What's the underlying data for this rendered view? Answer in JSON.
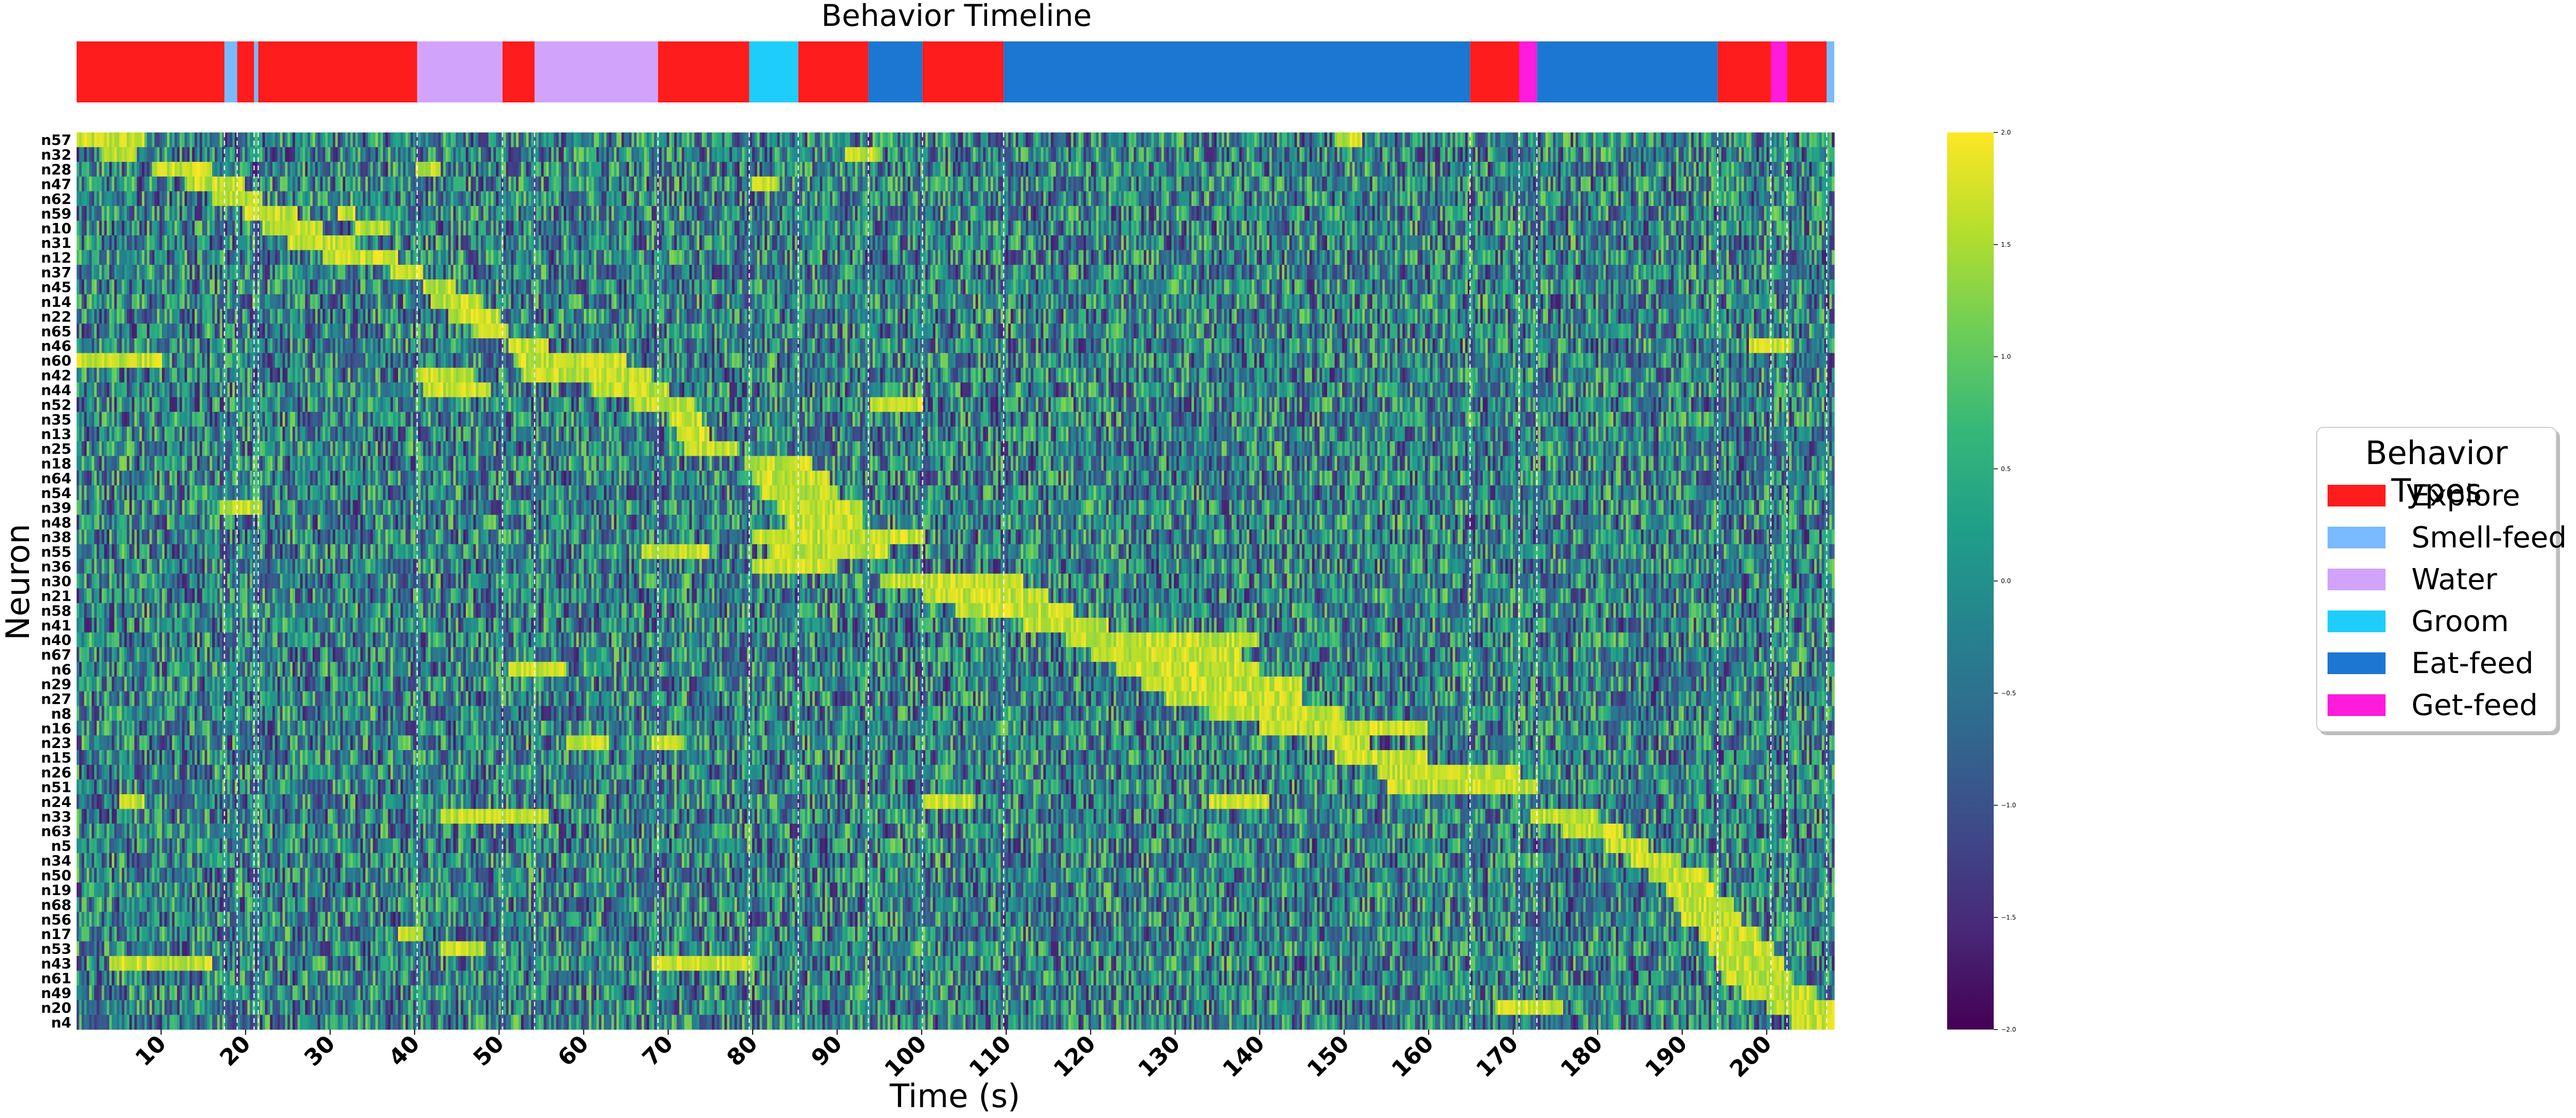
{
  "chart_data": [
    {
      "type": "timeline",
      "title": "Behavior Timeline",
      "x_range": [
        0,
        208
      ],
      "segments": [
        {
          "start": 0,
          "end": 17.5,
          "behavior": "Explore"
        },
        {
          "start": 17.5,
          "end": 19,
          "behavior": "Smell-feed"
        },
        {
          "start": 19,
          "end": 21,
          "behavior": "Explore"
        },
        {
          "start": 21,
          "end": 21.5,
          "behavior": "Smell-feed"
        },
        {
          "start": 21.5,
          "end": 40.3,
          "behavior": "Explore"
        },
        {
          "start": 40.3,
          "end": 50.4,
          "behavior": "Water"
        },
        {
          "start": 50.4,
          "end": 54.2,
          "behavior": "Explore"
        },
        {
          "start": 54.2,
          "end": 68.8,
          "behavior": "Water"
        },
        {
          "start": 68.8,
          "end": 79.6,
          "behavior": "Explore"
        },
        {
          "start": 79.6,
          "end": 85.4,
          "behavior": "Groom"
        },
        {
          "start": 85.4,
          "end": 93.7,
          "behavior": "Explore"
        },
        {
          "start": 93.7,
          "end": 100.1,
          "behavior": "Eat-feed"
        },
        {
          "start": 100.1,
          "end": 109.7,
          "behavior": "Explore"
        },
        {
          "start": 109.7,
          "end": 164.9,
          "behavior": "Eat-feed"
        },
        {
          "start": 164.9,
          "end": 170.7,
          "behavior": "Explore"
        },
        {
          "start": 170.7,
          "end": 172.8,
          "behavior": "Get-feed"
        },
        {
          "start": 172.8,
          "end": 194.2,
          "behavior": "Eat-feed"
        },
        {
          "start": 194.2,
          "end": 200.5,
          "behavior": "Explore"
        },
        {
          "start": 200.5,
          "end": 202.4,
          "behavior": "Get-feed"
        },
        {
          "start": 202.4,
          "end": 207.1,
          "behavior": "Explore"
        },
        {
          "start": 207.1,
          "end": 208,
          "behavior": "Smell-feed"
        }
      ],
      "behavior_colors": {
        "Explore": "#fe1c1c",
        "Smell-feed": "#7abaff",
        "Water": "#d1a3fb",
        "Groom": "#1fcdfb",
        "Eat-feed": "#1b77d1",
        "Get-feed": "#fe1bdb"
      }
    },
    {
      "type": "heatmap",
      "colormap": "viridis",
      "xlabel": "Time (s)",
      "ylabel": "Neuron",
      "x_range": [
        0,
        208
      ],
      "x_ticks": [
        10,
        20,
        30,
        40,
        50,
        60,
        70,
        80,
        90,
        100,
        110,
        120,
        130,
        140,
        150,
        160,
        170,
        180,
        190,
        200
      ],
      "neurons": [
        "n57",
        "n32",
        "n28",
        "n47",
        "n62",
        "n59",
        "n10",
        "n31",
        "n12",
        "n37",
        "n45",
        "n14",
        "n22",
        "n65",
        "n46",
        "n60",
        "n42",
        "n44",
        "n52",
        "n35",
        "n13",
        "n25",
        "n18",
        "n64",
        "n54",
        "n39",
        "n48",
        "n38",
        "n55",
        "n36",
        "n30",
        "n21",
        "n58",
        "n41",
        "n40",
        "n67",
        "n6",
        "n29",
        "n27",
        "n8",
        "n16",
        "n23",
        "n15",
        "n26",
        "n51",
        "n24",
        "n33",
        "n63",
        "n5",
        "n34",
        "n50",
        "n19",
        "n68",
        "n56",
        "n17",
        "n53",
        "n43",
        "n61",
        "n49",
        "n20",
        "n4"
      ],
      "behavior_boundaries": [
        17.5,
        19,
        21,
        21.5,
        40.3,
        50.4,
        54.2,
        68.8,
        79.6,
        85.4,
        93.7,
        100.1,
        109.7,
        164.9,
        170.7,
        172.8,
        194.2,
        200.5,
        202.4,
        207.1
      ],
      "high_activity": [
        {
          "neuron": "n57",
          "periods": [
            [
              0,
              8
            ],
            [
              149,
              152
            ]
          ]
        },
        {
          "neuron": "n32",
          "periods": [
            [
              3,
              7
            ],
            [
              91,
              95
            ]
          ]
        },
        {
          "neuron": "n28",
          "periods": [
            [
              9,
              16
            ],
            [
              40,
              43
            ]
          ]
        },
        {
          "neuron": "n47",
          "periods": [
            [
              13,
              20
            ],
            [
              80,
              83
            ]
          ]
        },
        {
          "neuron": "n62",
          "periods": [
            [
              16,
              22
            ]
          ]
        },
        {
          "neuron": "n59",
          "periods": [
            [
              20,
              26
            ],
            [
              31,
              33
            ]
          ]
        },
        {
          "neuron": "n10",
          "periods": [
            [
              22,
              29
            ],
            [
              33,
              37
            ]
          ]
        },
        {
          "neuron": "n31",
          "periods": [
            [
              25,
              33
            ]
          ]
        },
        {
          "neuron": "n12",
          "periods": [
            [
              29,
              38
            ]
          ]
        },
        {
          "neuron": "n37",
          "periods": [
            [
              37,
              41
            ]
          ]
        },
        {
          "neuron": "n45",
          "periods": [
            [
              41,
              45
            ]
          ]
        },
        {
          "neuron": "n14",
          "periods": [
            [
              42,
              48
            ]
          ]
        },
        {
          "neuron": "n22",
          "periods": [
            [
              44,
              50
            ]
          ]
        },
        {
          "neuron": "n65",
          "periods": [
            [
              47,
              51
            ]
          ]
        },
        {
          "neuron": "n46",
          "periods": [
            [
              51,
              56
            ],
            [
              198,
              203
            ]
          ]
        },
        {
          "neuron": "n60",
          "periods": [
            [
              0,
              10
            ],
            [
              52,
              58
            ],
            [
              58,
              65
            ]
          ]
        },
        {
          "neuron": "n42",
          "periods": [
            [
              40,
              47
            ],
            [
              53,
              68
            ]
          ]
        },
        {
          "neuron": "n44",
          "periods": [
            [
              41,
              49
            ],
            [
              61,
              70
            ]
          ]
        },
        {
          "neuron": "n52",
          "periods": [
            [
              66,
              73
            ],
            [
              94,
              100
            ]
          ]
        },
        {
          "neuron": "n35",
          "periods": [
            [
              70,
              74
            ]
          ]
        },
        {
          "neuron": "n13",
          "periods": [
            [
              71,
              75
            ]
          ]
        },
        {
          "neuron": "n25",
          "periods": [
            [
              72,
              78
            ]
          ]
        },
        {
          "neuron": "n18",
          "periods": [
            [
              79,
              87
            ]
          ]
        },
        {
          "neuron": "n64",
          "periods": [
            [
              80,
              89
            ]
          ]
        },
        {
          "neuron": "n54",
          "periods": [
            [
              81,
              90
            ]
          ]
        },
        {
          "neuron": "n39",
          "periods": [
            [
              17,
              22
            ],
            [
              83,
              93
            ]
          ]
        },
        {
          "neuron": "n48",
          "periods": [
            [
              84,
              93
            ]
          ]
        },
        {
          "neuron": "n38",
          "periods": [
            [
              80,
              100
            ]
          ]
        },
        {
          "neuron": "n55",
          "periods": [
            [
              67,
              75
            ],
            [
              82,
              96
            ]
          ]
        },
        {
          "neuron": "n36",
          "periods": [
            [
              80,
              90
            ]
          ]
        },
        {
          "neuron": "n30",
          "periods": [
            [
              95,
              112
            ]
          ]
        },
        {
          "neuron": "n21",
          "periods": [
            [
              100,
              115
            ]
          ]
        },
        {
          "neuron": "n58",
          "periods": [
            [
              104,
              118
            ]
          ]
        },
        {
          "neuron": "n41",
          "periods": [
            [
              112,
              122
            ]
          ]
        },
        {
          "neuron": "n40",
          "periods": [
            [
              117,
              140
            ]
          ]
        },
        {
          "neuron": "n67",
          "periods": [
            [
              120,
              138
            ]
          ]
        },
        {
          "neuron": "n6",
          "periods": [
            [
              51,
              58
            ],
            [
              123,
              140
            ]
          ]
        },
        {
          "neuron": "n29",
          "periods": [
            [
              126,
              145
            ]
          ]
        },
        {
          "neuron": "n27",
          "periods": [
            [
              129,
              145
            ]
          ]
        },
        {
          "neuron": "n8",
          "periods": [
            [
              134,
              150
            ]
          ]
        },
        {
          "neuron": "n16",
          "periods": [
            [
              140,
              160
            ]
          ]
        },
        {
          "neuron": "n23",
          "periods": [
            [
              58,
              63
            ],
            [
              68,
              72
            ],
            [
              148,
              153
            ]
          ]
        },
        {
          "neuron": "n15",
          "periods": [
            [
              149,
              160
            ]
          ]
        },
        {
          "neuron": "n26",
          "periods": [
            [
              154,
              171
            ]
          ]
        },
        {
          "neuron": "n51",
          "periods": [
            [
              155,
              173
            ]
          ]
        },
        {
          "neuron": "n24",
          "periods": [
            [
              5,
              8
            ],
            [
              100,
              106
            ],
            [
              134,
              141
            ]
          ]
        },
        {
          "neuron": "n33",
          "periods": [
            [
              43,
              56
            ],
            [
              172,
              180
            ]
          ]
        },
        {
          "neuron": "n63",
          "periods": [
            [
              176,
              183
            ]
          ]
        },
        {
          "neuron": "n5",
          "periods": [
            [
              181,
              186
            ]
          ]
        },
        {
          "neuron": "n34",
          "periods": [
            [
              184,
              190
            ]
          ]
        },
        {
          "neuron": "n50",
          "periods": [
            [
              186,
              193
            ]
          ]
        },
        {
          "neuron": "n19",
          "periods": [
            [
              188,
              194
            ]
          ]
        },
        {
          "neuron": "n68",
          "periods": [
            [
              189,
              196
            ]
          ]
        },
        {
          "neuron": "n56",
          "periods": [
            [
              190,
              197
            ]
          ]
        },
        {
          "neuron": "n17",
          "periods": [
            [
              38,
              41
            ],
            [
              192,
              199
            ]
          ]
        },
        {
          "neuron": "n53",
          "periods": [
            [
              43,
              48
            ],
            [
              193,
              201
            ]
          ]
        },
        {
          "neuron": "n43",
          "periods": [
            [
              4,
              16
            ],
            [
              68,
              80
            ],
            [
              194,
              202
            ]
          ]
        },
        {
          "neuron": "n61",
          "periods": [
            [
              195,
              203
            ]
          ]
        },
        {
          "neuron": "n49",
          "periods": [
            [
              197,
              206
            ]
          ]
        },
        {
          "neuron": "n20",
          "periods": [
            [
              168,
              176
            ],
            [
              200,
              208
            ]
          ]
        },
        {
          "neuron": "n4",
          "periods": [
            [
              203,
              208
            ]
          ]
        }
      ],
      "colorbar": {
        "min": -2.0,
        "max": 2.0,
        "ticks": [
          2.0,
          1.5,
          1.0,
          0.5,
          0.0,
          -0.5,
          -1.0,
          -1.5,
          -2.0
        ],
        "tick_labels": [
          "2.0",
          "1.5",
          "1.0",
          "0.5",
          "0.0",
          "−0.5",
          "−1.0",
          "−1.5",
          "−2.0"
        ]
      }
    }
  ],
  "legend": {
    "title": "Behavior Types",
    "items": [
      {
        "label": "Explore",
        "color": "#fe1c1c"
      },
      {
        "label": "Smell-feed",
        "color": "#7abaff"
      },
      {
        "label": "Water",
        "color": "#d1a3fb"
      },
      {
        "label": "Groom",
        "color": "#1fcdfb"
      },
      {
        "label": "Eat-feed",
        "color": "#1b77d1"
      },
      {
        "label": "Get-feed",
        "color": "#fe1bdb"
      }
    ]
  }
}
